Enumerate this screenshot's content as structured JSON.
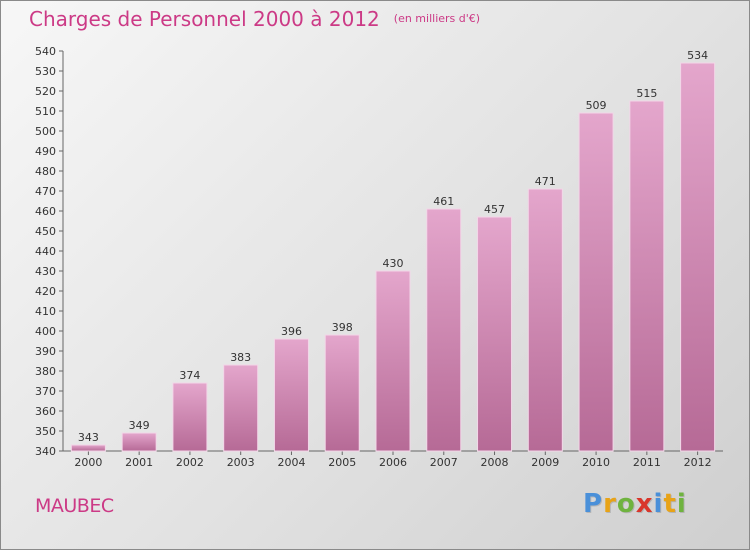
{
  "chart_data": {
    "type": "bar",
    "title": "Charges de Personnel 2000 à 2012",
    "subtitle": "(en milliers d'€)",
    "categories": [
      "2000",
      "2001",
      "2002",
      "2003",
      "2004",
      "2005",
      "2006",
      "2007",
      "2008",
      "2009",
      "2010",
      "2011",
      "2012"
    ],
    "values": [
      343,
      349,
      374,
      383,
      396,
      398,
      430,
      461,
      457,
      471,
      509,
      515,
      534
    ],
    "ylim": [
      340,
      540
    ],
    "ytick_step": 10,
    "grid": false,
    "bar_color_top": "#e4a6cc",
    "bar_color_bottom": "#b66a96"
  },
  "footer": {
    "place_name": "MAUBEC",
    "brand": "Proxiti",
    "brand_colors": [
      "#4a90d9",
      "#e8a317",
      "#6fb33f",
      "#d9362b",
      "#4a90d9",
      "#e8a317",
      "#6fb33f"
    ]
  }
}
